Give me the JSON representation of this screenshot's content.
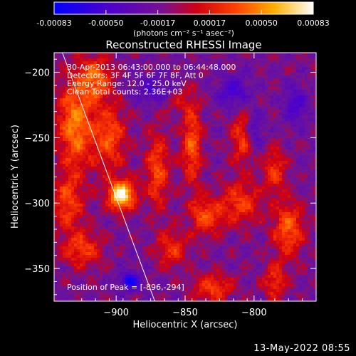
{
  "chart_data": {
    "type": "heatmap",
    "title": "Reconstructed RHESSI Image",
    "xlabel": "Heliocentric X (arcsec)",
    "ylabel": "Heliocentric Y (arcsec)",
    "xlim": [
      -945,
      -755
    ],
    "ylim": [
      -375,
      -185
    ],
    "xticks": [
      -900,
      -850,
      -800
    ],
    "yticks": [
      -200,
      -250,
      -300,
      -350
    ],
    "colorbar": {
      "min": -0.00083,
      "max": 0.00083,
      "ticks": [
        "-0.00083",
        "-0.00050",
        "-0.00017",
        "0.00017",
        "0.00050",
        "0.00083"
      ],
      "unit_label": "(photons cm⁻² s⁻¹ asec⁻²)",
      "colors": [
        "#0000ff",
        "#6a00c0",
        "#b00030",
        "#ff3000",
        "#ffa000",
        "#ffff80",
        "#ffffff"
      ]
    },
    "annotations": [
      "30-Apr-2013 06:43:00.000 to 06:44:48.000",
      "Detectors: 3F 4F 5F 6F 7F 8F, Att 0",
      "Energy Range: 12.0 - 25.0 keV",
      "Clean   Total counts: 2.36E+03"
    ],
    "peak_label": "Position of Peak = [-896,-294]",
    "peak": [
      -896,
      -294
    ],
    "limb_line": [
      [
        -939,
        -185
      ],
      [
        -872,
        -375
      ]
    ],
    "features": [
      {
        "x": -930,
        "y": -240,
        "amp": 0.7,
        "sx": 9,
        "sy": 25
      },
      {
        "x": -915,
        "y": -205,
        "amp": 0.6,
        "sx": 8,
        "sy": 12
      },
      {
        "x": -905,
        "y": -250,
        "amp": 0.55,
        "sx": 9,
        "sy": 18
      },
      {
        "x": -935,
        "y": -300,
        "amp": 0.5,
        "sx": 8,
        "sy": 14
      },
      {
        "x": -925,
        "y": -335,
        "amp": 0.5,
        "sx": 10,
        "sy": 10
      },
      {
        "x": -896,
        "y": -294,
        "amp": 1.1,
        "sx": 7,
        "sy": 8
      },
      {
        "x": -870,
        "y": -275,
        "amp": 0.55,
        "sx": 6,
        "sy": 20
      },
      {
        "x": -845,
        "y": -255,
        "amp": 0.6,
        "sx": 5,
        "sy": 22
      },
      {
        "x": -835,
        "y": -310,
        "amp": 0.55,
        "sx": 8,
        "sy": 10
      },
      {
        "x": -810,
        "y": -300,
        "amp": 0.5,
        "sx": 10,
        "sy": 12
      },
      {
        "x": -808,
        "y": -250,
        "amp": 0.5,
        "sx": 6,
        "sy": 14
      },
      {
        "x": -785,
        "y": -275,
        "amp": 0.45,
        "sx": 6,
        "sy": 12
      },
      {
        "x": -775,
        "y": -320,
        "amp": 0.6,
        "sx": 8,
        "sy": 15
      },
      {
        "x": -860,
        "y": -335,
        "amp": 0.45,
        "sx": 8,
        "sy": 10
      },
      {
        "x": -830,
        "y": -365,
        "amp": 0.5,
        "sx": 10,
        "sy": 8
      },
      {
        "x": -785,
        "y": -360,
        "amp": 0.45,
        "sx": 6,
        "sy": 10
      },
      {
        "x": -860,
        "y": -220,
        "amp": 0.35,
        "sx": 10,
        "sy": 8
      },
      {
        "x": -890,
        "y": -360,
        "amp": -0.75,
        "sx": 5,
        "sy": 5
      },
      {
        "x": -870,
        "y": -215,
        "amp": -0.5,
        "sx": 10,
        "sy": 8
      },
      {
        "x": -815,
        "y": -215,
        "amp": -0.45,
        "sx": 8,
        "sy": 8
      },
      {
        "x": -800,
        "y": -245,
        "amp": -0.45,
        "sx": 4,
        "sy": 10
      },
      {
        "x": -770,
        "y": -225,
        "amp": -0.4,
        "sx": 6,
        "sy": 10
      }
    ]
  },
  "timestamp": "13-May-2022 08:55"
}
